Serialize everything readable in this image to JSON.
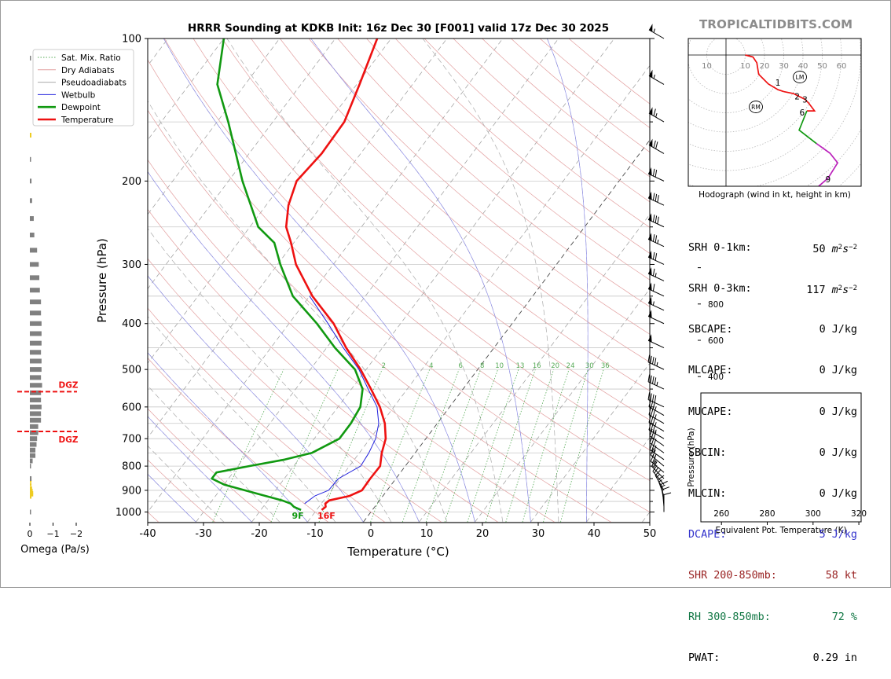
{
  "brand": "TROPICALTIDBITS.COM",
  "colors": {
    "temperature": "#ee1111",
    "dewpoint": "#119911",
    "wetbulb": "#2222dd",
    "theta_e": "#3399aa",
    "dgz": "#ee1111",
    "dcape": "#3333cc",
    "shear": "#992222",
    "rh": "#117744",
    "mixratio": "#55aa55",
    "dry_adiabat": "#e3a0a0",
    "moist_adiabat": "#aaaaaa",
    "wetbulb_ref": "#8888ee"
  },
  "chart_data": [
    {
      "type": "line",
      "subtype": "skew-T log-P sounding",
      "title": "HRRR Sounding at KDKB Init: 16z Dec 30 [F001] valid 17z Dec 30 2025",
      "xlabel": "Temperature (°C)",
      "ylabel": "Pressure (hPa)",
      "x_ticks": [
        -40,
        -30,
        -20,
        -10,
        0,
        10,
        20,
        30,
        40,
        50
      ],
      "y_ticks": [
        100,
        200,
        300,
        400,
        500,
        600,
        700,
        800,
        900,
        1000
      ],
      "y_scale": "log (reversed)",
      "xlim": [
        -40,
        50
      ],
      "ylim": [
        1050,
        100
      ],
      "grid": true,
      "legend_position": "top-left",
      "legend": [
        "Sat. Mix. Ratio",
        "Dry Adiabats",
        "Pseudoadiabats",
        "Wetbulb",
        "Dewpoint",
        "Temperature"
      ],
      "mix_ratio_labels": [
        "2",
        "4",
        "6",
        "8",
        "10",
        "13",
        "16",
        "20",
        "24",
        "30",
        "36"
      ],
      "surface_labels": {
        "dewpoint": "9F",
        "temperature": "16F"
      },
      "series": [
        {
          "name": "Temperature",
          "pressure": [
            990,
            975,
            960,
            945,
            925,
            900,
            850,
            800,
            750,
            700,
            650,
            600,
            550,
            500,
            450,
            400,
            350,
            300,
            270,
            250,
            225,
            200,
            175,
            150,
            125,
            100
          ],
          "temperature": [
            -9.1,
            -8.8,
            -9.3,
            -9.0,
            -6.0,
            -4.5,
            -4.6,
            -4.5,
            -6.0,
            -7.2,
            -9.4,
            -12.5,
            -16.5,
            -21.0,
            -26.5,
            -32.0,
            -39.5,
            -46.7,
            -50.5,
            -53.5,
            -56.0,
            -57.8,
            -57.0,
            -57.2,
            -59.5,
            -62.5
          ]
        },
        {
          "name": "Dewpoint",
          "pressure": [
            990,
            975,
            960,
            945,
            925,
            900,
            875,
            850,
            825,
            800,
            775,
            750,
            700,
            650,
            600,
            550,
            500,
            450,
            400,
            350,
            300,
            270,
            250,
            200,
            150,
            125,
            100
          ],
          "temperature": [
            -12.8,
            -14.5,
            -15.5,
            -17.5,
            -21.0,
            -25.5,
            -30.0,
            -33.0,
            -33.0,
            -28.0,
            -22.5,
            -18.5,
            -15.5,
            -15.5,
            -16.0,
            -18.0,
            -22.0,
            -28.5,
            -35.0,
            -43.0,
            -49.5,
            -53.5,
            -58.5,
            -67.5,
            -78.0,
            -85.0,
            -90.0
          ]
        },
        {
          "name": "Wetbulb",
          "pressure": [
            960,
            925,
            900,
            850,
            800,
            750,
            700,
            650,
            600,
            550,
            500,
            450,
            400,
            350
          ],
          "temperature": [
            -13.0,
            -12.2,
            -10.5,
            -10.3,
            -8.0,
            -8.3,
            -9.0,
            -10.5,
            -13.0,
            -17.0,
            -21.3,
            -27.0,
            -33.0,
            -40.0
          ]
        }
      ]
    },
    {
      "type": "bar",
      "title": "",
      "xlabel": "Omega (Pa/s)",
      "x_ticks": [
        "0",
        "−1",
        "−2"
      ],
      "dgz_labels": [
        "DGZ",
        "DGZ"
      ],
      "dgz_bounds_hpa": [
        557,
        676
      ],
      "pressure": [
        1000,
        930,
        920,
        910,
        900,
        890,
        875,
        860,
        850,
        800,
        780,
        760,
        740,
        720,
        700,
        680,
        660,
        640,
        620,
        600,
        580,
        560,
        540,
        520,
        500,
        480,
        460,
        440,
        420,
        400,
        380,
        360,
        340,
        320,
        300,
        280,
        260,
        240,
        220,
        200,
        180,
        160,
        110
      ],
      "values": [
        -0.01,
        -0.03,
        -0.06,
        -0.06,
        -0.05,
        -0.04,
        -0.03,
        -0.03,
        -0.03,
        -0.02,
        -0.05,
        -0.1,
        -0.1,
        -0.12,
        -0.13,
        -0.15,
        -0.15,
        -0.2,
        -0.2,
        -0.21,
        -0.2,
        -0.2,
        -0.22,
        -0.2,
        -0.21,
        -0.21,
        -0.2,
        -0.21,
        -0.21,
        -0.21,
        -0.2,
        -0.2,
        -0.18,
        -0.17,
        -0.16,
        -0.13,
        -0.08,
        -0.07,
        -0.04,
        -0.03,
        -0.02,
        -0.02,
        -0.02
      ]
    },
    {
      "type": "line",
      "title": "Hodograph (wind in kt, height in km)",
      "ring_labels": [
        "10",
        "10",
        "20",
        "30",
        "40",
        "50",
        "60"
      ],
      "height_labels": [
        "1",
        "2",
        "3",
        "6",
        "9"
      ],
      "markers": [
        "LM",
        "RM"
      ],
      "u": [
        10,
        14,
        16,
        17,
        22,
        27,
        30,
        35,
        37,
        41,
        43,
        46,
        42,
        38,
        47,
        54,
        58,
        53,
        46,
        46
      ],
      "v": [
        60,
        59,
        56,
        50,
        45,
        42,
        41,
        40,
        39,
        37,
        35,
        31,
        31,
        21,
        14,
        9,
        4,
        -4,
        -10,
        -18
      ],
      "segment_colors": [
        "#ee1111",
        "#ee1111",
        "#ee1111",
        "#119911",
        "#bb22bb",
        "#2222dd"
      ]
    },
    {
      "type": "line",
      "xlabel": "Equivalent Pot. Temperature (K)",
      "ylabel": "Pressure (hPa)",
      "x_ticks": [
        260,
        280,
        300,
        320
      ],
      "y_ticks": [
        400,
        600,
        800
      ],
      "xlim": [
        251,
        321
      ],
      "ylim": [
        1020,
        310
      ],
      "pressure": [
        1000,
        990,
        980,
        960,
        940,
        920,
        900,
        880,
        860,
        840,
        820,
        800,
        780,
        760,
        740,
        720,
        700,
        680,
        660,
        640,
        620,
        600,
        580,
        560,
        540,
        520,
        500,
        480,
        460,
        440,
        420,
        400,
        380,
        360,
        340,
        320,
        310
      ],
      "theta_e": [
        269.5,
        268.5,
        268.5,
        271,
        274.5,
        277,
        279,
        281,
        283.5,
        286.5,
        290,
        294,
        296,
        298,
        300,
        302.5,
        305,
        308,
        310.5,
        312.5,
        314.5,
        316,
        317,
        318,
        319,
        320,
        321,
        322,
        323.5,
        325,
        327,
        328,
        328.5,
        329,
        329.5,
        330,
        331
      ]
    }
  ],
  "stats": [
    {
      "label": "SRH 0-1km:",
      "value": "50",
      "unit": "m2s-2",
      "color": "#000000"
    },
    {
      "label": "SRH 0-3km:",
      "value": "117",
      "unit": "m2s-2",
      "color": "#000000"
    },
    {
      "label": "SBCAPE:",
      "value": "0 J/kg",
      "color": "#000000"
    },
    {
      "label": "MLCAPE:",
      "value": "0 J/kg",
      "color": "#000000"
    },
    {
      "label": "MUCAPE:",
      "value": "0 J/kg",
      "color": "#000000"
    },
    {
      "label": "SBCIN:",
      "value": "0 J/kg",
      "color": "#000000"
    },
    {
      "label": "MLCIN:",
      "value": "0 J/kg",
      "color": "#000000"
    },
    {
      "label": "DCAPE:",
      "value": "5 J/kg",
      "color": "#3333cc"
    },
    {
      "label": "SHR 200-850mb:",
      "value": "58 kt",
      "color": "#992222"
    },
    {
      "label": "RH 300-850mb:",
      "value": "72 %",
      "color": "#117744"
    },
    {
      "label": "PWAT:",
      "value": "0.29 in",
      "color": "#000000"
    }
  ],
  "wind_barbs": {
    "pressure": [
      100,
      125,
      150,
      175,
      200,
      225,
      250,
      275,
      300,
      325,
      350,
      375,
      400,
      450,
      500,
      550,
      600,
      625,
      650,
      675,
      700,
      725,
      750,
      775,
      800,
      825,
      850,
      875,
      900,
      925,
      950,
      975,
      1000
    ],
    "speed_kt": [
      55,
      55,
      65,
      70,
      70,
      80,
      80,
      75,
      70,
      65,
      60,
      55,
      50,
      50,
      45,
      45,
      40,
      35,
      35,
      35,
      35,
      30,
      30,
      30,
      25,
      25,
      20,
      20,
      15,
      15,
      15,
      10,
      10
    ],
    "direction_deg": [
      300,
      300,
      300,
      300,
      295,
      295,
      295,
      295,
      295,
      295,
      295,
      295,
      295,
      295,
      295,
      295,
      295,
      300,
      300,
      300,
      300,
      305,
      305,
      305,
      310,
      310,
      315,
      320,
      330,
      340,
      350,
      355,
      360
    ]
  }
}
